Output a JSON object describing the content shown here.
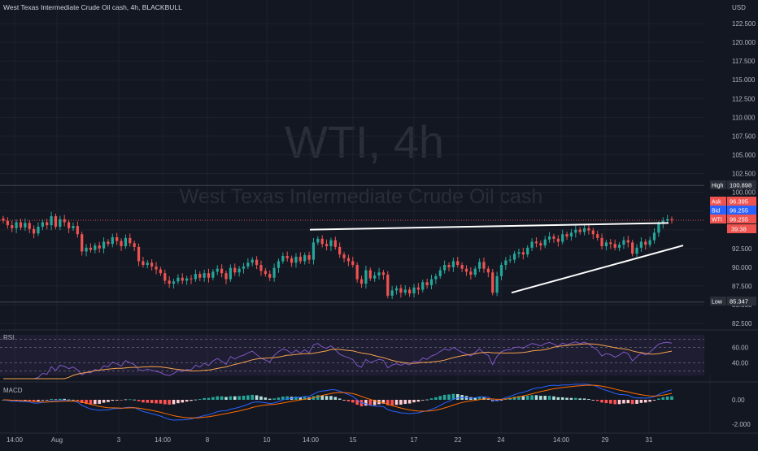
{
  "header": {
    "symbol_line": "West Texas Intermediate Crude Oil cash, 4h, BLACKBULL"
  },
  "watermark": {
    "ticker": "WTI, 4h",
    "name": "West Texas Intermediate Crude Oil cash"
  },
  "price_axis": {
    "currency": "USD",
    "labels": [
      "122.500",
      "120.000",
      "117.500",
      "115.000",
      "112.500",
      "110.000",
      "107.500",
      "105.000",
      "102.500",
      "100.000",
      "97.500",
      "95.000",
      "92.500",
      "90.000",
      "87.500",
      "85.000",
      "82.500"
    ]
  },
  "tags": {
    "high": {
      "label": "High",
      "value": "100.898"
    },
    "ask": {
      "label": "Ask",
      "value": "96.395"
    },
    "bid": {
      "label": "Bid",
      "value": "96.255"
    },
    "last": {
      "label": "WTI",
      "value": "96.255",
      "countdown": "39:38"
    },
    "low": {
      "label": "Low",
      "value": "85.347"
    }
  },
  "time_axis": [
    "14:00",
    "Aug",
    "3",
    "14:00",
    "8",
    "10",
    "14:00",
    "15",
    "17",
    "22",
    "24",
    "14:00",
    "29",
    "31"
  ],
  "rsi": {
    "label": "RSI",
    "levels": [
      "60.00",
      "40.00"
    ]
  },
  "macd": {
    "label": "MACD",
    "levels": [
      "0.00",
      "-2.000"
    ]
  },
  "colors": {
    "up": "#26a69a",
    "down": "#ef5350",
    "background": "#131722",
    "rsi_line": "#7e57c2",
    "rsi_ma": "#f6a24d",
    "macd_line": "#2962ff",
    "signal_line": "#ff6d00"
  },
  "chart_data": {
    "type": "candlestick",
    "symbol": "WTI",
    "interval": "4h",
    "price_range": [
      81.5,
      124.5
    ],
    "closes": [
      96.2,
      95.6,
      95.2,
      96.0,
      95.3,
      95.9,
      95.1,
      94.5,
      95.4,
      96.0,
      95.6,
      96.8,
      95.4,
      96.4,
      96.0,
      95.2,
      95.5,
      94.4,
      92.1,
      92.6,
      92.3,
      92.9,
      92.5,
      93.4,
      93.1,
      94.0,
      93.5,
      92.8,
      93.9,
      93.2,
      92.7,
      90.8,
      90.3,
      90.6,
      90.1,
      89.7,
      89.2,
      88.2,
      87.8,
      88.1,
      88.6,
      88.2,
      88.5,
      88.4,
      89.1,
      88.6,
      89.2,
      88.6,
      89.4,
      89.8,
      89.2,
      88.4,
      89.9,
      89.3,
      89.8,
      90.1,
      90.6,
      91.0,
      90.3,
      89.5,
      89.1,
      88.6,
      89.9,
      90.8,
      91.5,
      91.2,
      90.6,
      91.4,
      90.8,
      91.6,
      91.0,
      93.3,
      93.8,
      93.1,
      92.8,
      93.6,
      92.7,
      91.7,
      91.2,
      90.8,
      90.3,
      88.4,
      87.8,
      89.6,
      88.5,
      88.9,
      89.3,
      89.0,
      86.2,
      86.9,
      87.2,
      86.6,
      87.0,
      86.5,
      87.3,
      87.0,
      88.0,
      87.6,
      88.4,
      88.8,
      89.6,
      90.3,
      90.0,
      90.8,
      90.3,
      89.8,
      89.4,
      89.0,
      89.8,
      90.7,
      89.8,
      89.3,
      86.6,
      88.8,
      90.3,
      90.9,
      91.0,
      91.8,
      92.0,
      91.7,
      92.6,
      93.4,
      93.2,
      92.9,
      93.7,
      94.1,
      93.8,
      93.4,
      94.4,
      94.1,
      94.6,
      95.0,
      94.7,
      95.2,
      94.9,
      94.4,
      93.9,
      92.8,
      93.3,
      93.1,
      92.6,
      93.0,
      93.6,
      93.3,
      91.8,
      92.6,
      93.4,
      93.0,
      93.6,
      94.6,
      95.8,
      96.2,
      96.4,
      96.26
    ],
    "resistance_trendline": {
      "from": 95.0,
      "to": 95.9
    },
    "support_trendline": {
      "from": 86.6,
      "to": 92.9
    },
    "high": 100.898,
    "low": 85.347,
    "rsi": {
      "range": [
        20,
        80
      ],
      "levels": [
        70,
        60,
        40,
        30
      ]
    },
    "macd": {
      "range": [
        -2.6,
        1.2
      ]
    }
  }
}
